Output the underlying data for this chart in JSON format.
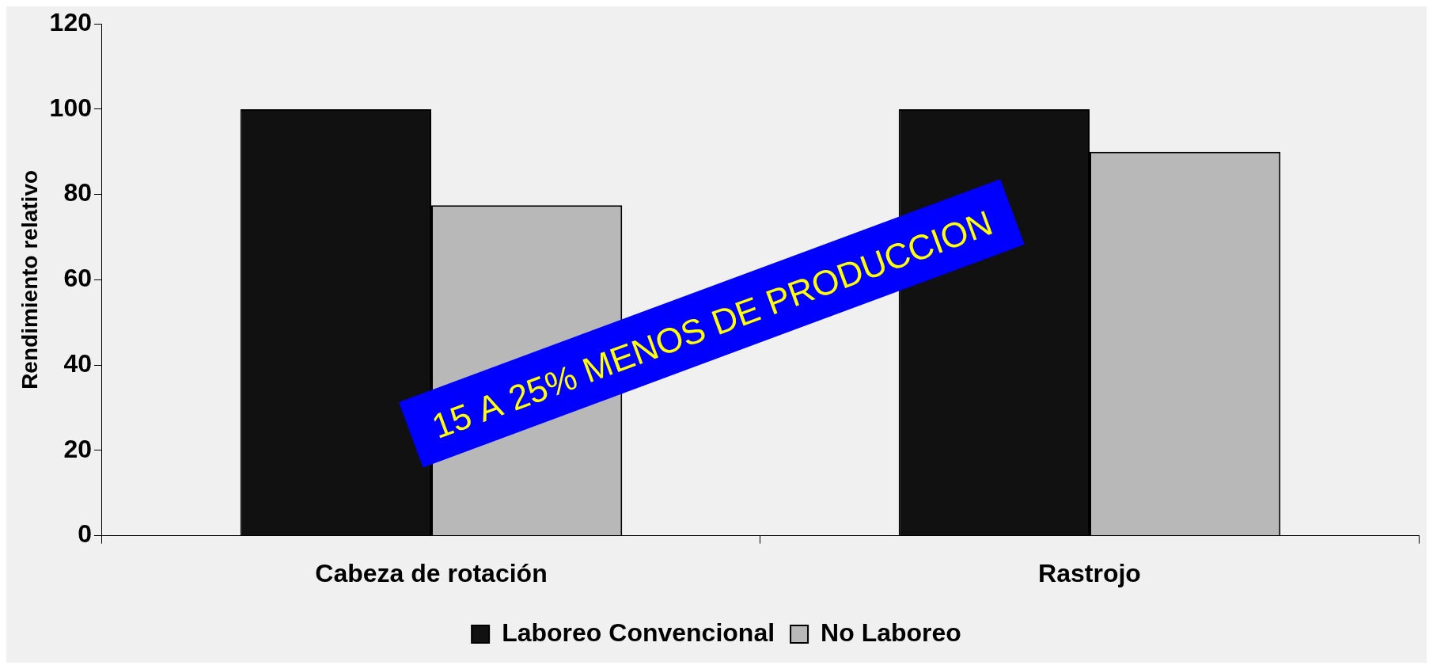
{
  "chart_data": {
    "type": "bar",
    "ylabel": "Rendimiento relativo",
    "categories": [
      "Cabeza de rotación",
      "Rastrojo"
    ],
    "series": [
      {
        "name": "Laboreo Convencional",
        "color": "#111111",
        "values": [
          100,
          100
        ]
      },
      {
        "name": "No Laboreo",
        "color": "#b8b8b8",
        "values": [
          77.5,
          90
        ]
      }
    ],
    "ylim": [
      0,
      120
    ],
    "yticks": [
      0,
      20,
      40,
      60,
      80,
      100,
      120
    ],
    "grid": false,
    "legend": "bottom",
    "annotations": [
      "15 A 25% MENOS DE PRODUCCION"
    ]
  }
}
